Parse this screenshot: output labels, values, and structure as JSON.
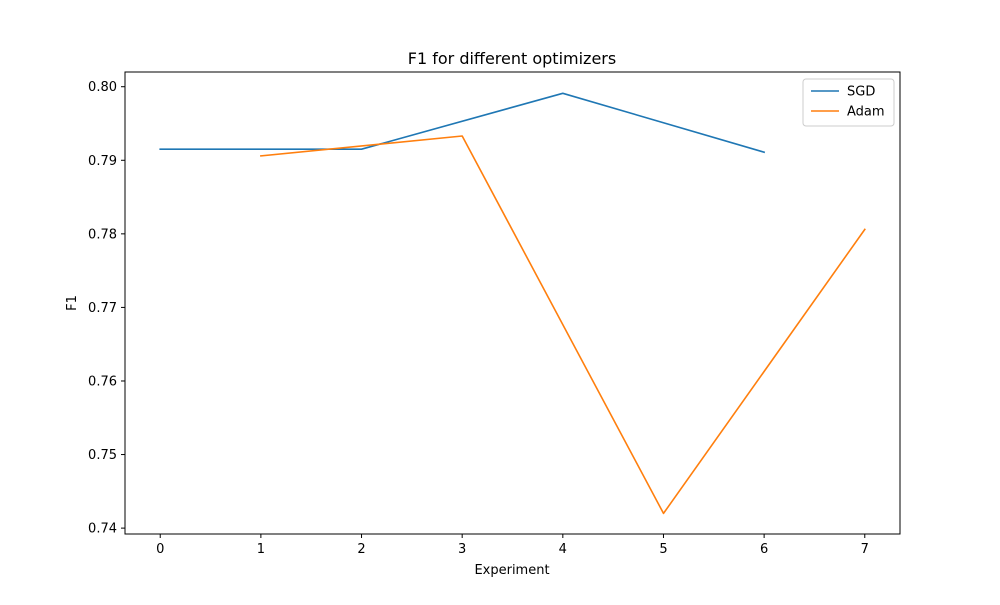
{
  "chart_data": {
    "type": "line",
    "title": "F1 for different optimizers",
    "xlabel": "Experiment",
    "ylabel": "F1",
    "xlim": [
      -0.35,
      7.35
    ],
    "ylim": [
      0.7392,
      0.802
    ],
    "xticks": [
      0,
      1,
      2,
      3,
      4,
      5,
      6,
      7
    ],
    "xtick_labels": [
      "0",
      "1",
      "2",
      "3",
      "4",
      "5",
      "6",
      "7"
    ],
    "yticks": [
      0.74,
      0.75,
      0.76,
      0.77,
      0.78,
      0.79,
      0.8
    ],
    "ytick_labels": [
      "0.74",
      "0.75",
      "0.76",
      "0.77",
      "0.78",
      "0.79",
      "0.80"
    ],
    "grid": false,
    "legend_position": "top-right",
    "series": [
      {
        "name": "SGD",
        "color": "#1f77b4",
        "x": [
          0,
          2,
          4,
          6
        ],
        "y": [
          0.7915,
          0.7915,
          0.7991,
          0.7911
        ]
      },
      {
        "name": "Adam",
        "color": "#ff7f0e",
        "x": [
          1,
          3,
          5,
          7
        ],
        "y": [
          0.7906,
          0.7933,
          0.742,
          0.7806
        ]
      }
    ]
  }
}
